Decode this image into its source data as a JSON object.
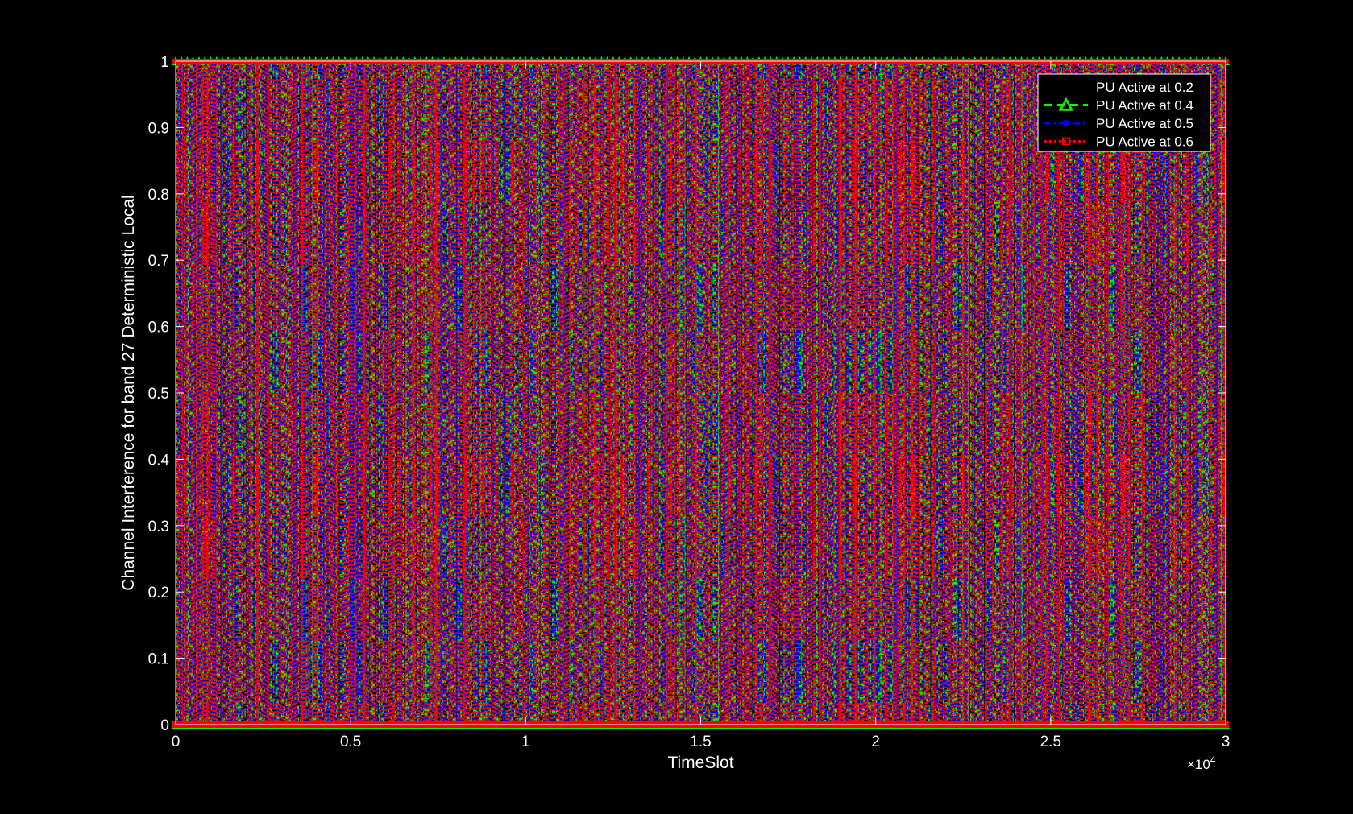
{
  "chart_data": {
    "type": "line",
    "title": "",
    "xlabel": "TimeSlot",
    "ylabel": "Channel Interference for band 27 Deterministic Local",
    "xlim": [
      0,
      30000
    ],
    "ylim": [
      0,
      1
    ],
    "x_ticks": [
      0,
      5000,
      10000,
      15000,
      20000,
      25000,
      30000
    ],
    "x_tick_labels": [
      "0",
      "0.5",
      "1",
      "1.5",
      "2",
      "2.5",
      "3"
    ],
    "x_exponent_label": "×10",
    "x_exponent_power": "4",
    "y_ticks": [
      0,
      0.1,
      0.2,
      0.3,
      0.4,
      0.5,
      0.6,
      0.7,
      0.8,
      0.9,
      1
    ],
    "y_tick_labels": [
      "0",
      "0.1",
      "0.2",
      "0.3",
      "0.4",
      "0.5",
      "0.6",
      "0.7",
      "0.8",
      "0.9",
      "1"
    ],
    "grid": false,
    "background": "#000000",
    "axes_color": "#ffffff",
    "legend_position": "top-right",
    "series": [
      {
        "name": "PU Active at 0.2",
        "color": "#000000",
        "marker": "circle",
        "line_style": "solid",
        "description": "binary on/off signal (0 or 1) over time slots",
        "level_values": [
          0,
          1
        ]
      },
      {
        "name": "PU Active at 0.4",
        "color": "#00ff00",
        "marker": "triangle",
        "line_style": "dashed",
        "level_values": [
          0,
          1
        ]
      },
      {
        "name": "PU Active at 0.5",
        "color": "#0000ff",
        "marker": "asterisk",
        "line_style": "dashdot",
        "level_values": [
          0,
          1
        ]
      },
      {
        "name": "PU Active at 0.6",
        "color": "#ff0000",
        "marker": "square",
        "line_style": "dotted",
        "level_values": [
          0,
          1
        ]
      }
    ]
  }
}
